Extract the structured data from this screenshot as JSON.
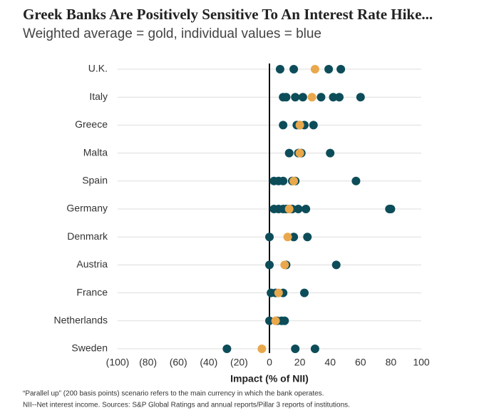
{
  "chart_data": {
    "type": "dot",
    "title": "Greek Banks Are Positively Sensitive To An Interest Rate Hike...",
    "subtitle": "Weighted average = gold, individual values = blue",
    "x_label": "Impact (% of NII)",
    "notes": [
      "“Parallel up” (200 basis points) scenario refers to the main currency in which the bank operates.",
      "NII--Net interest income. Sources: S&P Global Ratings and annual reports/Pillar 3 reports of institutions."
    ],
    "categories": [
      "U.K.",
      "Italy",
      "Greece",
      "Malta",
      "Spain",
      "Germany",
      "Denmark",
      "Austria",
      "France",
      "Netherlands",
      "Sweden"
    ],
    "individual_values": [
      [
        7,
        16,
        39,
        47
      ],
      [
        9,
        11,
        17,
        22,
        34,
        42,
        46,
        60
      ],
      [
        9,
        18,
        20,
        23,
        29
      ],
      [
        13,
        19,
        21,
        40
      ],
      [
        3,
        6,
        9,
        15,
        17,
        57
      ],
      [
        3,
        6,
        9,
        11,
        13,
        15,
        19,
        24,
        79,
        80
      ],
      [
        0,
        16,
        25
      ],
      [
        0,
        11,
        44
      ],
      [
        1,
        4,
        9,
        23
      ],
      [
        0,
        5,
        8,
        10
      ],
      [
        -28,
        17,
        30
      ]
    ],
    "weighted_average": [
      30,
      28,
      20,
      20,
      16,
      13,
      12,
      10,
      6,
      4,
      -5
    ],
    "individual_color": "#0d4d5a",
    "average_color": "#e9a84c",
    "xlim": [
      -100,
      100
    ],
    "xticks": [
      {
        "value": -100,
        "label": "(100)"
      },
      {
        "value": -80,
        "label": "(80)"
      },
      {
        "value": -60,
        "label": "(60)"
      },
      {
        "value": -40,
        "label": "(40)"
      },
      {
        "value": -20,
        "label": "(20)"
      },
      0,
      20,
      40,
      60,
      80,
      100
    ],
    "grid": true
  }
}
